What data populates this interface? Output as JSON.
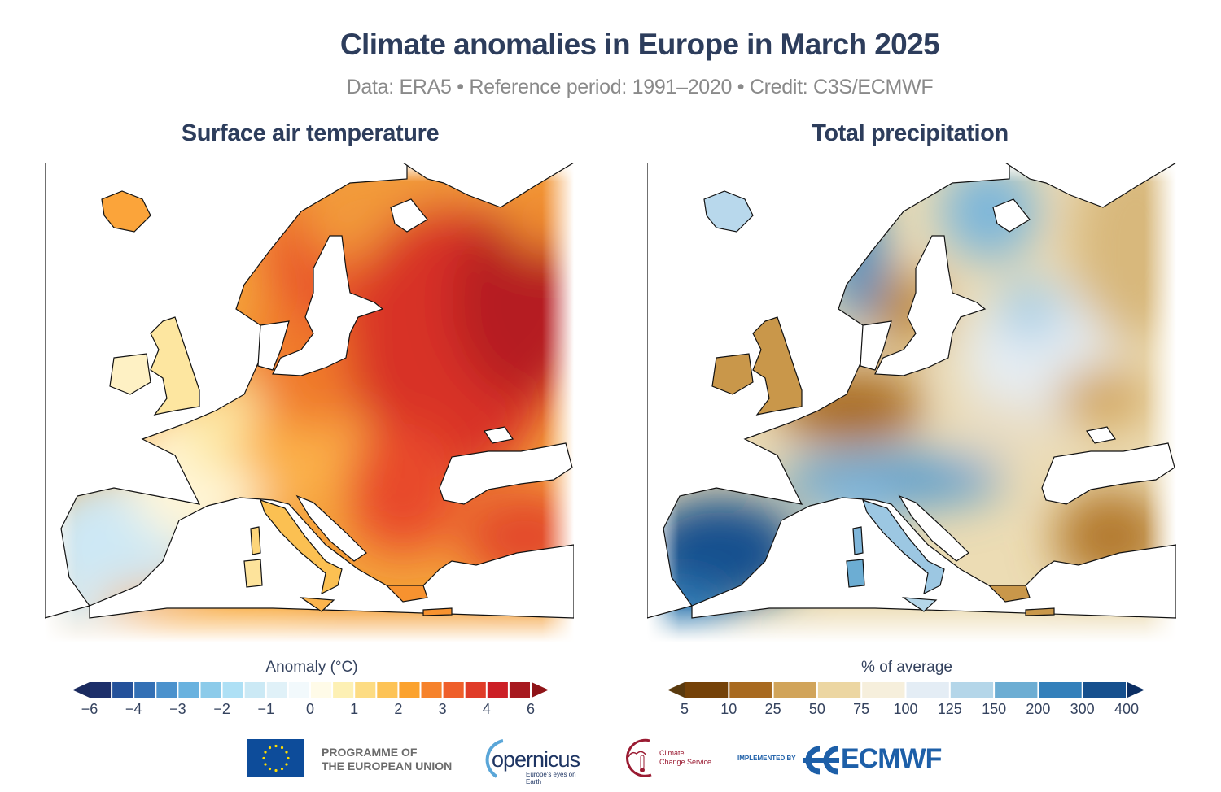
{
  "header": {
    "title": "Climate anomalies in Europe in March 2025",
    "subtitle": "Data: ERA5 • Reference period: 1991–2020 • Credit: C3S/ECMWF"
  },
  "panels": [
    {
      "title": "Surface air temperature",
      "colorbar": {
        "label": "Anomaly (°C)",
        "ticks": [
          "−6",
          "−4",
          "−3",
          "−2",
          "−1",
          "0",
          "1",
          "2",
          "3",
          "4",
          "6"
        ],
        "levels": [
          -6,
          -5,
          -4,
          -3.5,
          -3,
          -2.5,
          -2,
          -1.5,
          -1,
          -0.5,
          0,
          0.5,
          1,
          1.5,
          2,
          2.5,
          3,
          3.5,
          4,
          5,
          6
        ],
        "colors": [
          "#1d2f6b",
          "#24519a",
          "#3370b5",
          "#4b92cd",
          "#69b2df",
          "#8ccbea",
          "#aee0f5",
          "#cbe9f5",
          "#e0f1f8",
          "#f2f9fc",
          "#fffbe8",
          "#fdf0b4",
          "#fddc83",
          "#fdc356",
          "#fba22e",
          "#f6822b",
          "#ef5f2a",
          "#e03c28",
          "#cc1f26",
          "#a7191f"
        ],
        "under_color": "#1a2a5e",
        "over_color": "#8f1418"
      }
    },
    {
      "title": "Total precipitation",
      "colorbar": {
        "label": "% of average",
        "ticks": [
          "5",
          "10",
          "25",
          "50",
          "75",
          "100",
          "125",
          "150",
          "200",
          "300",
          "400"
        ],
        "levels": [
          5,
          10,
          25,
          50,
          75,
          100,
          125,
          150,
          200,
          300,
          400
        ],
        "colors": [
          "#754208",
          "#a86a20",
          "#d1a45a",
          "#ecd6a2",
          "#f6efdc",
          "#e4edf5",
          "#b4d6e9",
          "#6cadd3",
          "#3380bb",
          "#16508e"
        ],
        "under_color": "#5a3a0e",
        "over_color": "#0b2e63"
      }
    }
  ],
  "footer": {
    "eu_line1": "PROGRAMME OF",
    "eu_line2": "THE EUROPEAN UNION",
    "copernicus": "opernicus",
    "copernicus_tagline": "Europe's eyes on Earth",
    "c3s_line1": "Climate",
    "c3s_line2": "Change Service",
    "implemented_by": "IMPLEMENTED BY",
    "ecmwf": "ECMWF",
    "colors": {
      "eu_blue": "#0d4c9a",
      "eu_star": "#ffdd00",
      "ecmwf_blue": "#1d5fa8",
      "c3s_red": "#9a1b32"
    }
  }
}
